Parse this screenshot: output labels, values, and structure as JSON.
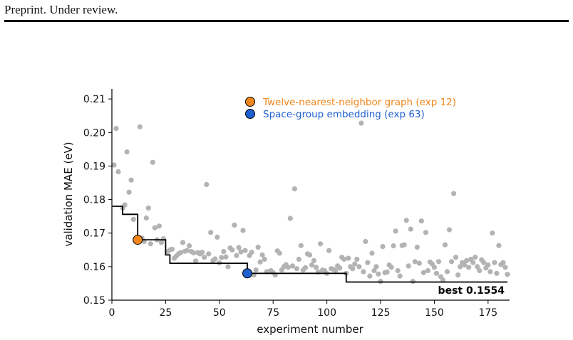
{
  "header": {
    "text": "Preprint. Under review."
  },
  "chart_data": {
    "type": "scatter",
    "xlabel": "experiment number",
    "ylabel": "validation MAE (eV)",
    "xlim": [
      0,
      185
    ],
    "ylim": [
      0.15,
      0.213
    ],
    "xticks": [
      0,
      25,
      50,
      75,
      100,
      125,
      150,
      175
    ],
    "yticks": [
      0.15,
      0.16,
      0.17,
      0.18,
      0.19,
      0.2,
      0.21
    ],
    "ytick_labels": [
      "0.15",
      "0.16",
      "0.17",
      "0.18",
      "0.19",
      "0.20",
      "0.21"
    ],
    "colors": {
      "points": "#b3b3b3",
      "frontier": "#000000",
      "highlight_a": "#f0861c",
      "highlight_b": "#1f5fd0"
    },
    "points": [
      [
        1,
        0.1903
      ],
      [
        2,
        0.2012
      ],
      [
        3,
        0.1883
      ],
      [
        5,
        0.1775
      ],
      [
        6,
        0.1784
      ],
      [
        7,
        0.1942
      ],
      [
        8,
        0.1822
      ],
      [
        9,
        0.1858
      ],
      [
        10,
        0.1741
      ],
      [
        11,
        0.1683
      ],
      [
        13,
        0.2017
      ],
      [
        14,
        0.1685
      ],
      [
        15,
        0.1675
      ],
      [
        16,
        0.1745
      ],
      [
        17,
        0.1775
      ],
      [
        18,
        0.1668
      ],
      [
        19,
        0.1911
      ],
      [
        20,
        0.1716
      ],
      [
        21,
        0.168
      ],
      [
        22,
        0.1721
      ],
      [
        23,
        0.1672
      ],
      [
        24,
        0.1683
      ],
      [
        26,
        0.1645
      ],
      [
        27,
        0.165
      ],
      [
        28,
        0.1652
      ],
      [
        29,
        0.1625
      ],
      [
        30,
        0.1632
      ],
      [
        31,
        0.1638
      ],
      [
        32,
        0.1642
      ],
      [
        33,
        0.1672
      ],
      [
        34,
        0.1646
      ],
      [
        35,
        0.1648
      ],
      [
        36,
        0.1662
      ],
      [
        37,
        0.1645
      ],
      [
        38,
        0.1641
      ],
      [
        39,
        0.1617
      ],
      [
        40,
        0.1642
      ],
      [
        41,
        0.1638
      ],
      [
        42,
        0.1643
      ],
      [
        43,
        0.1628
      ],
      [
        44,
        0.1845
      ],
      [
        45,
        0.1638
      ],
      [
        46,
        0.1702
      ],
      [
        47,
        0.1618
      ],
      [
        48,
        0.1623
      ],
      [
        49,
        0.1688
      ],
      [
        50,
        0.1611
      ],
      [
        51,
        0.1627
      ],
      [
        52,
        0.1645
      ],
      [
        53,
        0.1629
      ],
      [
        54,
        0.16
      ],
      [
        55,
        0.1656
      ],
      [
        56,
        0.165
      ],
      [
        57,
        0.1724
      ],
      [
        58,
        0.1633
      ],
      [
        59,
        0.1657
      ],
      [
        60,
        0.1644
      ],
      [
        61,
        0.1708
      ],
      [
        62,
        0.1648
      ],
      [
        64,
        0.1633
      ],
      [
        65,
        0.1643
      ],
      [
        66,
        0.1575
      ],
      [
        67,
        0.159
      ],
      [
        68,
        0.1658
      ],
      [
        69,
        0.1614
      ],
      [
        70,
        0.1635
      ],
      [
        71,
        0.1622
      ],
      [
        72,
        0.1585
      ],
      [
        73,
        0.1585
      ],
      [
        74,
        0.1588
      ],
      [
        75,
        0.1582
      ],
      [
        76,
        0.1575
      ],
      [
        77,
        0.1647
      ],
      [
        78,
        0.164
      ],
      [
        79,
        0.159
      ],
      [
        80,
        0.16
      ],
      [
        81,
        0.1606
      ],
      [
        82,
        0.1598
      ],
      [
        83,
        0.1744
      ],
      [
        84,
        0.1602
      ],
      [
        85,
        0.1832
      ],
      [
        86,
        0.1594
      ],
      [
        87,
        0.1622
      ],
      [
        88,
        0.1663
      ],
      [
        89,
        0.159
      ],
      [
        90,
        0.1597
      ],
      [
        91,
        0.1638
      ],
      [
        92,
        0.1635
      ],
      [
        93,
        0.1605
      ],
      [
        94,
        0.1618
      ],
      [
        95,
        0.1598
      ],
      [
        96,
        0.1584
      ],
      [
        97,
        0.1668
      ],
      [
        98,
        0.159
      ],
      [
        99,
        0.1588
      ],
      [
        100,
        0.158
      ],
      [
        101,
        0.1648
      ],
      [
        102,
        0.1594
      ],
      [
        103,
        0.1592
      ],
      [
        104,
        0.1588
      ],
      [
        105,
        0.1602
      ],
      [
        106,
        0.1596
      ],
      [
        107,
        0.1628
      ],
      [
        108,
        0.1622
      ],
      [
        109,
        0.158
      ],
      [
        110,
        0.1625
      ],
      [
        111,
        0.16
      ],
      [
        112,
        0.1594
      ],
      [
        113,
        0.1608
      ],
      [
        114,
        0.1622
      ],
      [
        115,
        0.16
      ],
      [
        116,
        0.2028
      ],
      [
        117,
        0.1585
      ],
      [
        118,
        0.1675
      ],
      [
        119,
        0.1612
      ],
      [
        120,
        0.1572
      ],
      [
        121,
        0.164
      ],
      [
        122,
        0.1588
      ],
      [
        123,
        0.16
      ],
      [
        124,
        0.1578
      ],
      [
        125,
        0.1556
      ],
      [
        126,
        0.166
      ],
      [
        127,
        0.1582
      ],
      [
        128,
        0.1584
      ],
      [
        129,
        0.1605
      ],
      [
        130,
        0.1598
      ],
      [
        131,
        0.1662
      ],
      [
        132,
        0.1706
      ],
      [
        133,
        0.1588
      ],
      [
        134,
        0.1572
      ],
      [
        135,
        0.1663
      ],
      [
        136,
        0.1665
      ],
      [
        137,
        0.1738
      ],
      [
        138,
        0.1602
      ],
      [
        139,
        0.1712
      ],
      [
        140,
        0.1556
      ],
      [
        141,
        0.1615
      ],
      [
        142,
        0.1658
      ],
      [
        143,
        0.161
      ],
      [
        144,
        0.1736
      ],
      [
        145,
        0.1582
      ],
      [
        146,
        0.1702
      ],
      [
        147,
        0.1588
      ],
      [
        148,
        0.1614
      ],
      [
        149,
        0.1608
      ],
      [
        150,
        0.1598
      ],
      [
        151,
        0.158
      ],
      [
        152,
        0.1615
      ],
      [
        153,
        0.157
      ],
      [
        154,
        0.156
      ],
      [
        155,
        0.1665
      ],
      [
        156,
        0.1585
      ],
      [
        157,
        0.171
      ],
      [
        158,
        0.1615
      ],
      [
        159,
        0.1818
      ],
      [
        160,
        0.1628
      ],
      [
        161,
        0.1575
      ],
      [
        162,
        0.16
      ],
      [
        163,
        0.1612
      ],
      [
        164,
        0.1605
      ],
      [
        165,
        0.1618
      ],
      [
        166,
        0.1598
      ],
      [
        167,
        0.1622
      ],
      [
        168,
        0.1612
      ],
      [
        169,
        0.1628
      ],
      [
        170,
        0.16
      ],
      [
        171,
        0.1588
      ],
      [
        172,
        0.162
      ],
      [
        173,
        0.1612
      ],
      [
        174,
        0.1596
      ],
      [
        175,
        0.1605
      ],
      [
        176,
        0.1585
      ],
      [
        177,
        0.17
      ],
      [
        178,
        0.1612
      ],
      [
        179,
        0.158
      ],
      [
        180,
        0.1663
      ],
      [
        181,
        0.1606
      ],
      [
        182,
        0.1612
      ],
      [
        183,
        0.1598
      ],
      [
        184,
        0.1577
      ]
    ],
    "frontier": [
      [
        0,
        0.178
      ],
      [
        5,
        0.178
      ],
      [
        5,
        0.1756
      ],
      [
        12,
        0.1756
      ],
      [
        12,
        0.168
      ],
      [
        25,
        0.168
      ],
      [
        25,
        0.1635
      ],
      [
        27,
        0.1635
      ],
      [
        27,
        0.161
      ],
      [
        63,
        0.161
      ],
      [
        63,
        0.158
      ],
      [
        109,
        0.158
      ],
      [
        109,
        0.1554
      ],
      [
        184,
        0.1554
      ]
    ],
    "highlights": [
      {
        "label": "Twelve-nearest-neighbor graph (exp 12)",
        "x": 12,
        "y": 0.168,
        "color": "#f0861c"
      },
      {
        "label": "Space-group embedding (exp 63)",
        "x": 63,
        "y": 0.158,
        "color": "#1f5fd0"
      }
    ],
    "legend_position": "top-center",
    "annotation": "best 0.1554"
  }
}
